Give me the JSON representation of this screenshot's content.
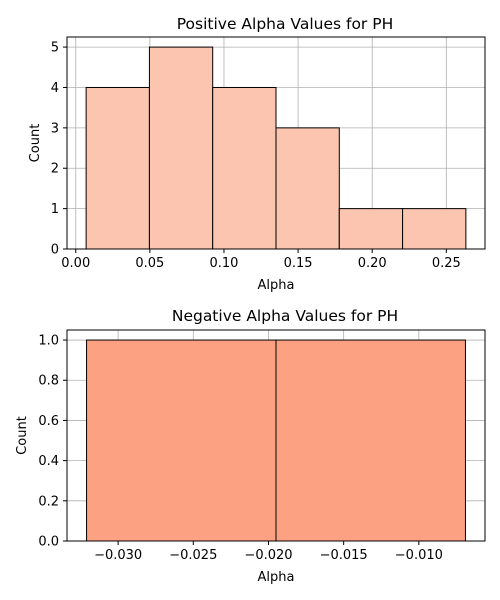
{
  "chart_data": [
    {
      "type": "bar",
      "title": "Positive Alpha Values for PH",
      "xlabel": "Alpha",
      "ylabel": "Count",
      "bins": [
        {
          "x0": 0.007,
          "x1": 0.0497,
          "count": 4
        },
        {
          "x0": 0.0497,
          "x1": 0.0924,
          "count": 5
        },
        {
          "x0": 0.0924,
          "x1": 0.1351,
          "count": 4
        },
        {
          "x0": 0.1351,
          "x1": 0.1778,
          "count": 3
        },
        {
          "x0": 0.1778,
          "x1": 0.2205,
          "count": 1
        },
        {
          "x0": 0.2205,
          "x1": 0.2632,
          "count": 1
        }
      ],
      "xlim": [
        -0.0059,
        0.2761
      ],
      "ylim": [
        0,
        5.25
      ],
      "xticks": [
        0.0,
        0.05,
        0.1,
        0.15,
        0.2,
        0.25
      ],
      "xtick_labels": [
        "0.00",
        "0.05",
        "0.10",
        "0.15",
        "0.20",
        "0.25"
      ],
      "yticks": [
        0,
        1,
        2,
        3,
        4,
        5
      ],
      "ytick_labels": [
        "0",
        "1",
        "2",
        "3",
        "4",
        "5"
      ],
      "bar_color": "#fcc5af",
      "grid": true
    },
    {
      "type": "bar",
      "title": "Negative Alpha Values for PH",
      "xlabel": "Alpha",
      "ylabel": "Count",
      "bins": [
        {
          "x0": -0.0321,
          "x1": -0.0195,
          "count": 1
        },
        {
          "x0": -0.0195,
          "x1": -0.0069,
          "count": 1
        }
      ],
      "xlim": [
        -0.0334,
        -0.0056
      ],
      "ylim": [
        0,
        1.05
      ],
      "xticks": [
        -0.03,
        -0.025,
        -0.02,
        -0.015,
        -0.01
      ],
      "xtick_labels": [
        "−0.030",
        "−0.025",
        "−0.020",
        "−0.015",
        "−0.010"
      ],
      "yticks": [
        0.0,
        0.2,
        0.4,
        0.6,
        0.8,
        1.0
      ],
      "ytick_labels": [
        "0.0",
        "0.2",
        "0.4",
        "0.6",
        "0.8",
        "1.0"
      ],
      "bar_color": "#fca283",
      "grid": true
    }
  ]
}
